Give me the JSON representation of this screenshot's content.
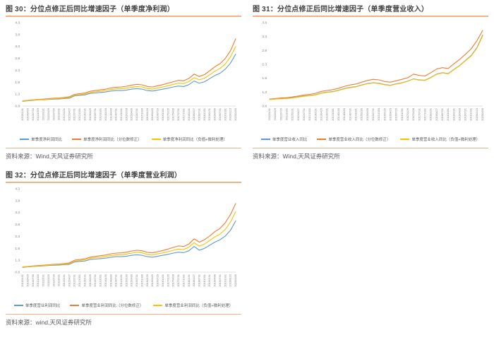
{
  "figures": [
    {
      "source": "资料来源：Wind,天风证券研究所"
    },
    {
      "source": "资料来源：Wind,天风证券研究所"
    },
    {
      "source": "资料来源：wind,天风证券研究所"
    }
  ],
  "chart_data": [
    {
      "type": "line",
      "title": "图 30：分位点修正后同比增速因子（单季度净利润）",
      "ylim": [
        0.8,
        4.3
      ],
      "yticks": [
        0.8,
        1.3,
        1.8,
        2.3,
        2.8,
        3.3,
        3.8,
        4.3
      ],
      "grid": false,
      "legend_position": "bottom",
      "x": [
        "20100131",
        "20100429",
        "20100730",
        "20101029",
        "20110131",
        "20110429",
        "20110729",
        "20111031",
        "20120131",
        "20120427",
        "20120731",
        "20121031",
        "20130131",
        "20130426",
        "20130731",
        "20131031",
        "20140130",
        "20140430",
        "20140731",
        "20141031",
        "20150130",
        "20150430",
        "20150731",
        "20151030",
        "20160129",
        "20160429",
        "20160729",
        "20161031",
        "20170126",
        "20170428",
        "20170731",
        "20171031",
        "20180131",
        "20180427",
        "20180731",
        "20181031",
        "20190131",
        "20190430",
        "20190731",
        "20191031",
        "20200123",
        "20200430"
      ],
      "series": [
        {
          "name": "单季度净利润同比",
          "color": "#5B9BD5",
          "values": [
            1.0,
            1.02,
            1.04,
            1.06,
            1.06,
            1.08,
            1.09,
            1.1,
            1.11,
            1.13,
            1.23,
            1.25,
            1.27,
            1.33,
            1.35,
            1.37,
            1.39,
            1.43,
            1.45,
            1.45,
            1.47,
            1.51,
            1.53,
            1.51,
            1.45,
            1.43,
            1.47,
            1.51,
            1.55,
            1.6,
            1.64,
            1.62,
            1.7,
            1.85,
            1.76,
            1.82,
            1.95,
            2.08,
            2.18,
            2.35,
            2.6,
            2.98
          ]
        },
        {
          "name": "单季度净利润同比（分位数修正）",
          "color": "#ED7D31",
          "values": [
            1.02,
            1.04,
            1.06,
            1.08,
            1.09,
            1.11,
            1.13,
            1.14,
            1.16,
            1.19,
            1.29,
            1.32,
            1.35,
            1.42,
            1.45,
            1.48,
            1.51,
            1.56,
            1.59,
            1.6,
            1.63,
            1.68,
            1.71,
            1.69,
            1.62,
            1.6,
            1.65,
            1.7,
            1.76,
            1.82,
            1.88,
            1.86,
            1.96,
            2.14,
            2.04,
            2.12,
            2.28,
            2.45,
            2.58,
            2.8,
            3.12,
            3.62
          ]
        },
        {
          "name": "单季度净利润同比（负值+微利处理）",
          "color": "#FFC000",
          "values": [
            1.01,
            1.03,
            1.05,
            1.07,
            1.07,
            1.09,
            1.11,
            1.12,
            1.13,
            1.16,
            1.26,
            1.28,
            1.31,
            1.37,
            1.4,
            1.42,
            1.45,
            1.49,
            1.52,
            1.52,
            1.55,
            1.59,
            1.62,
            1.6,
            1.53,
            1.51,
            1.56,
            1.6,
            1.65,
            1.71,
            1.76,
            1.74,
            1.83,
            1.99,
            1.9,
            1.97,
            2.11,
            2.26,
            2.38,
            2.57,
            2.86,
            3.3
          ]
        }
      ]
    },
    {
      "type": "line",
      "title": "图 31：分位点修正后同比增速因子（单季度营业收入）",
      "ylim": [
        0.8,
        3.8
      ],
      "yticks": [
        0.8,
        1.3,
        1.8,
        2.3,
        2.8,
        3.3,
        3.8
      ],
      "grid": false,
      "legend_position": "bottom",
      "x": [
        "20110131",
        "20110429",
        "20110729",
        "20111031",
        "20120131",
        "20120427",
        "20120731",
        "20121031",
        "20130131",
        "20130426",
        "20130731",
        "20131031",
        "20140130",
        "20140430",
        "20140731",
        "20141031",
        "20150130",
        "20150430",
        "20150731",
        "20151030",
        "20160129",
        "20160429",
        "20160729",
        "20161031",
        "20170126",
        "20170428",
        "20170731",
        "20171031",
        "20180131",
        "20180427",
        "20180731",
        "20181031",
        "20190131",
        "20190430",
        "20190731",
        "20191031",
        "20200123",
        "20200430"
      ],
      "series": [
        {
          "name": "单季度营业收入同比",
          "color": "#5B9BD5",
          "values": [
            1.04,
            1.06,
            1.07,
            1.08,
            1.1,
            1.13,
            1.16,
            1.18,
            1.21,
            1.27,
            1.3,
            1.32,
            1.37,
            1.43,
            1.47,
            1.5,
            1.56,
            1.61,
            1.64,
            1.62,
            1.57,
            1.55,
            1.6,
            1.64,
            1.7,
            1.78,
            1.74,
            1.73,
            1.83,
            1.95,
            2.0,
            1.97,
            2.12,
            2.26,
            2.44,
            2.62,
            2.9,
            3.35
          ]
        },
        {
          "name": "单季度营业收入同比（分位数修正）",
          "color": "#ED7D31",
          "values": [
            1.05,
            1.07,
            1.09,
            1.1,
            1.13,
            1.16,
            1.2,
            1.22,
            1.26,
            1.33,
            1.36,
            1.39,
            1.44,
            1.51,
            1.56,
            1.59,
            1.66,
            1.72,
            1.76,
            1.74,
            1.68,
            1.66,
            1.71,
            1.76,
            1.82,
            1.95,
            1.9,
            1.88,
            2.0,
            2.13,
            2.18,
            2.15,
            2.32,
            2.48,
            2.66,
            2.86,
            3.15,
            3.52
          ]
        },
        {
          "name": "单季度营业收入同比（负值+微利处理）",
          "color": "#FFC000",
          "values": [
            1.03,
            1.05,
            1.06,
            1.07,
            1.09,
            1.12,
            1.15,
            1.17,
            1.2,
            1.26,
            1.29,
            1.31,
            1.36,
            1.42,
            1.46,
            1.49,
            1.55,
            1.6,
            1.63,
            1.61,
            1.56,
            1.54,
            1.59,
            1.63,
            1.69,
            1.77,
            1.73,
            1.72,
            1.82,
            1.94,
            1.99,
            1.96,
            2.11,
            2.25,
            2.43,
            2.6,
            2.88,
            3.32
          ]
        }
      ]
    },
    {
      "type": "line",
      "title": "图 32：分位点修正后同比增速因子（单季度营业利润）",
      "ylim": [
        0.8,
        4.3
      ],
      "yticks": [
        0.8,
        1.3,
        1.8,
        2.3,
        2.8,
        3.3,
        3.8,
        4.3
      ],
      "grid": false,
      "legend_position": "bottom",
      "x": [
        "20100131",
        "20100429",
        "20100730",
        "20101029",
        "20110131",
        "20110429",
        "20110729",
        "20111031",
        "20120131",
        "20120427",
        "20120731",
        "20121031",
        "20130131",
        "20130426",
        "20130731",
        "20131031",
        "20140130",
        "20140430",
        "20140731",
        "20141031",
        "20150130",
        "20150430",
        "20150731",
        "20151030",
        "20160129",
        "20160429",
        "20160729",
        "20161031",
        "20170126",
        "20170428",
        "20170731",
        "20171031",
        "20180131",
        "20180427",
        "20180731",
        "20181031",
        "20190131",
        "20190430",
        "20190731",
        "20191031",
        "20200123",
        "20200430"
      ],
      "series": [
        {
          "name": "单季度营业利润同比",
          "color": "#5B9BD5",
          "values": [
            1.0,
            1.02,
            1.04,
            1.05,
            1.06,
            1.08,
            1.09,
            1.1,
            1.11,
            1.13,
            1.23,
            1.25,
            1.27,
            1.33,
            1.35,
            1.37,
            1.39,
            1.43,
            1.45,
            1.45,
            1.47,
            1.51,
            1.53,
            1.51,
            1.45,
            1.43,
            1.47,
            1.51,
            1.55,
            1.6,
            1.64,
            1.62,
            1.7,
            1.88,
            1.72,
            1.8,
            1.93,
            2.06,
            2.16,
            2.32,
            2.56,
            2.95
          ]
        },
        {
          "name": "单季度营业利润同比（分位数修正）",
          "color": "#ED7D31",
          "values": [
            1.02,
            1.04,
            1.06,
            1.08,
            1.09,
            1.11,
            1.13,
            1.14,
            1.16,
            1.19,
            1.3,
            1.33,
            1.36,
            1.43,
            1.46,
            1.49,
            1.52,
            1.57,
            1.6,
            1.61,
            1.64,
            1.69,
            1.72,
            1.7,
            1.63,
            1.61,
            1.66,
            1.71,
            1.77,
            1.84,
            1.9,
            1.88,
            1.98,
            2.2,
            2.06,
            2.16,
            2.32,
            2.5,
            2.64,
            2.88,
            3.22,
            3.68
          ]
        },
        {
          "name": "单季度营业利润同比（负值+微利处理）",
          "color": "#FFC000",
          "values": [
            1.01,
            1.03,
            1.05,
            1.06,
            1.07,
            1.09,
            1.11,
            1.12,
            1.13,
            1.16,
            1.26,
            1.29,
            1.32,
            1.38,
            1.41,
            1.43,
            1.46,
            1.5,
            1.53,
            1.53,
            1.56,
            1.6,
            1.63,
            1.61,
            1.54,
            1.52,
            1.57,
            1.61,
            1.66,
            1.72,
            1.77,
            1.75,
            1.85,
            2.04,
            1.89,
            1.98,
            2.13,
            2.28,
            2.4,
            2.6,
            2.9,
            3.34
          ]
        }
      ]
    }
  ]
}
